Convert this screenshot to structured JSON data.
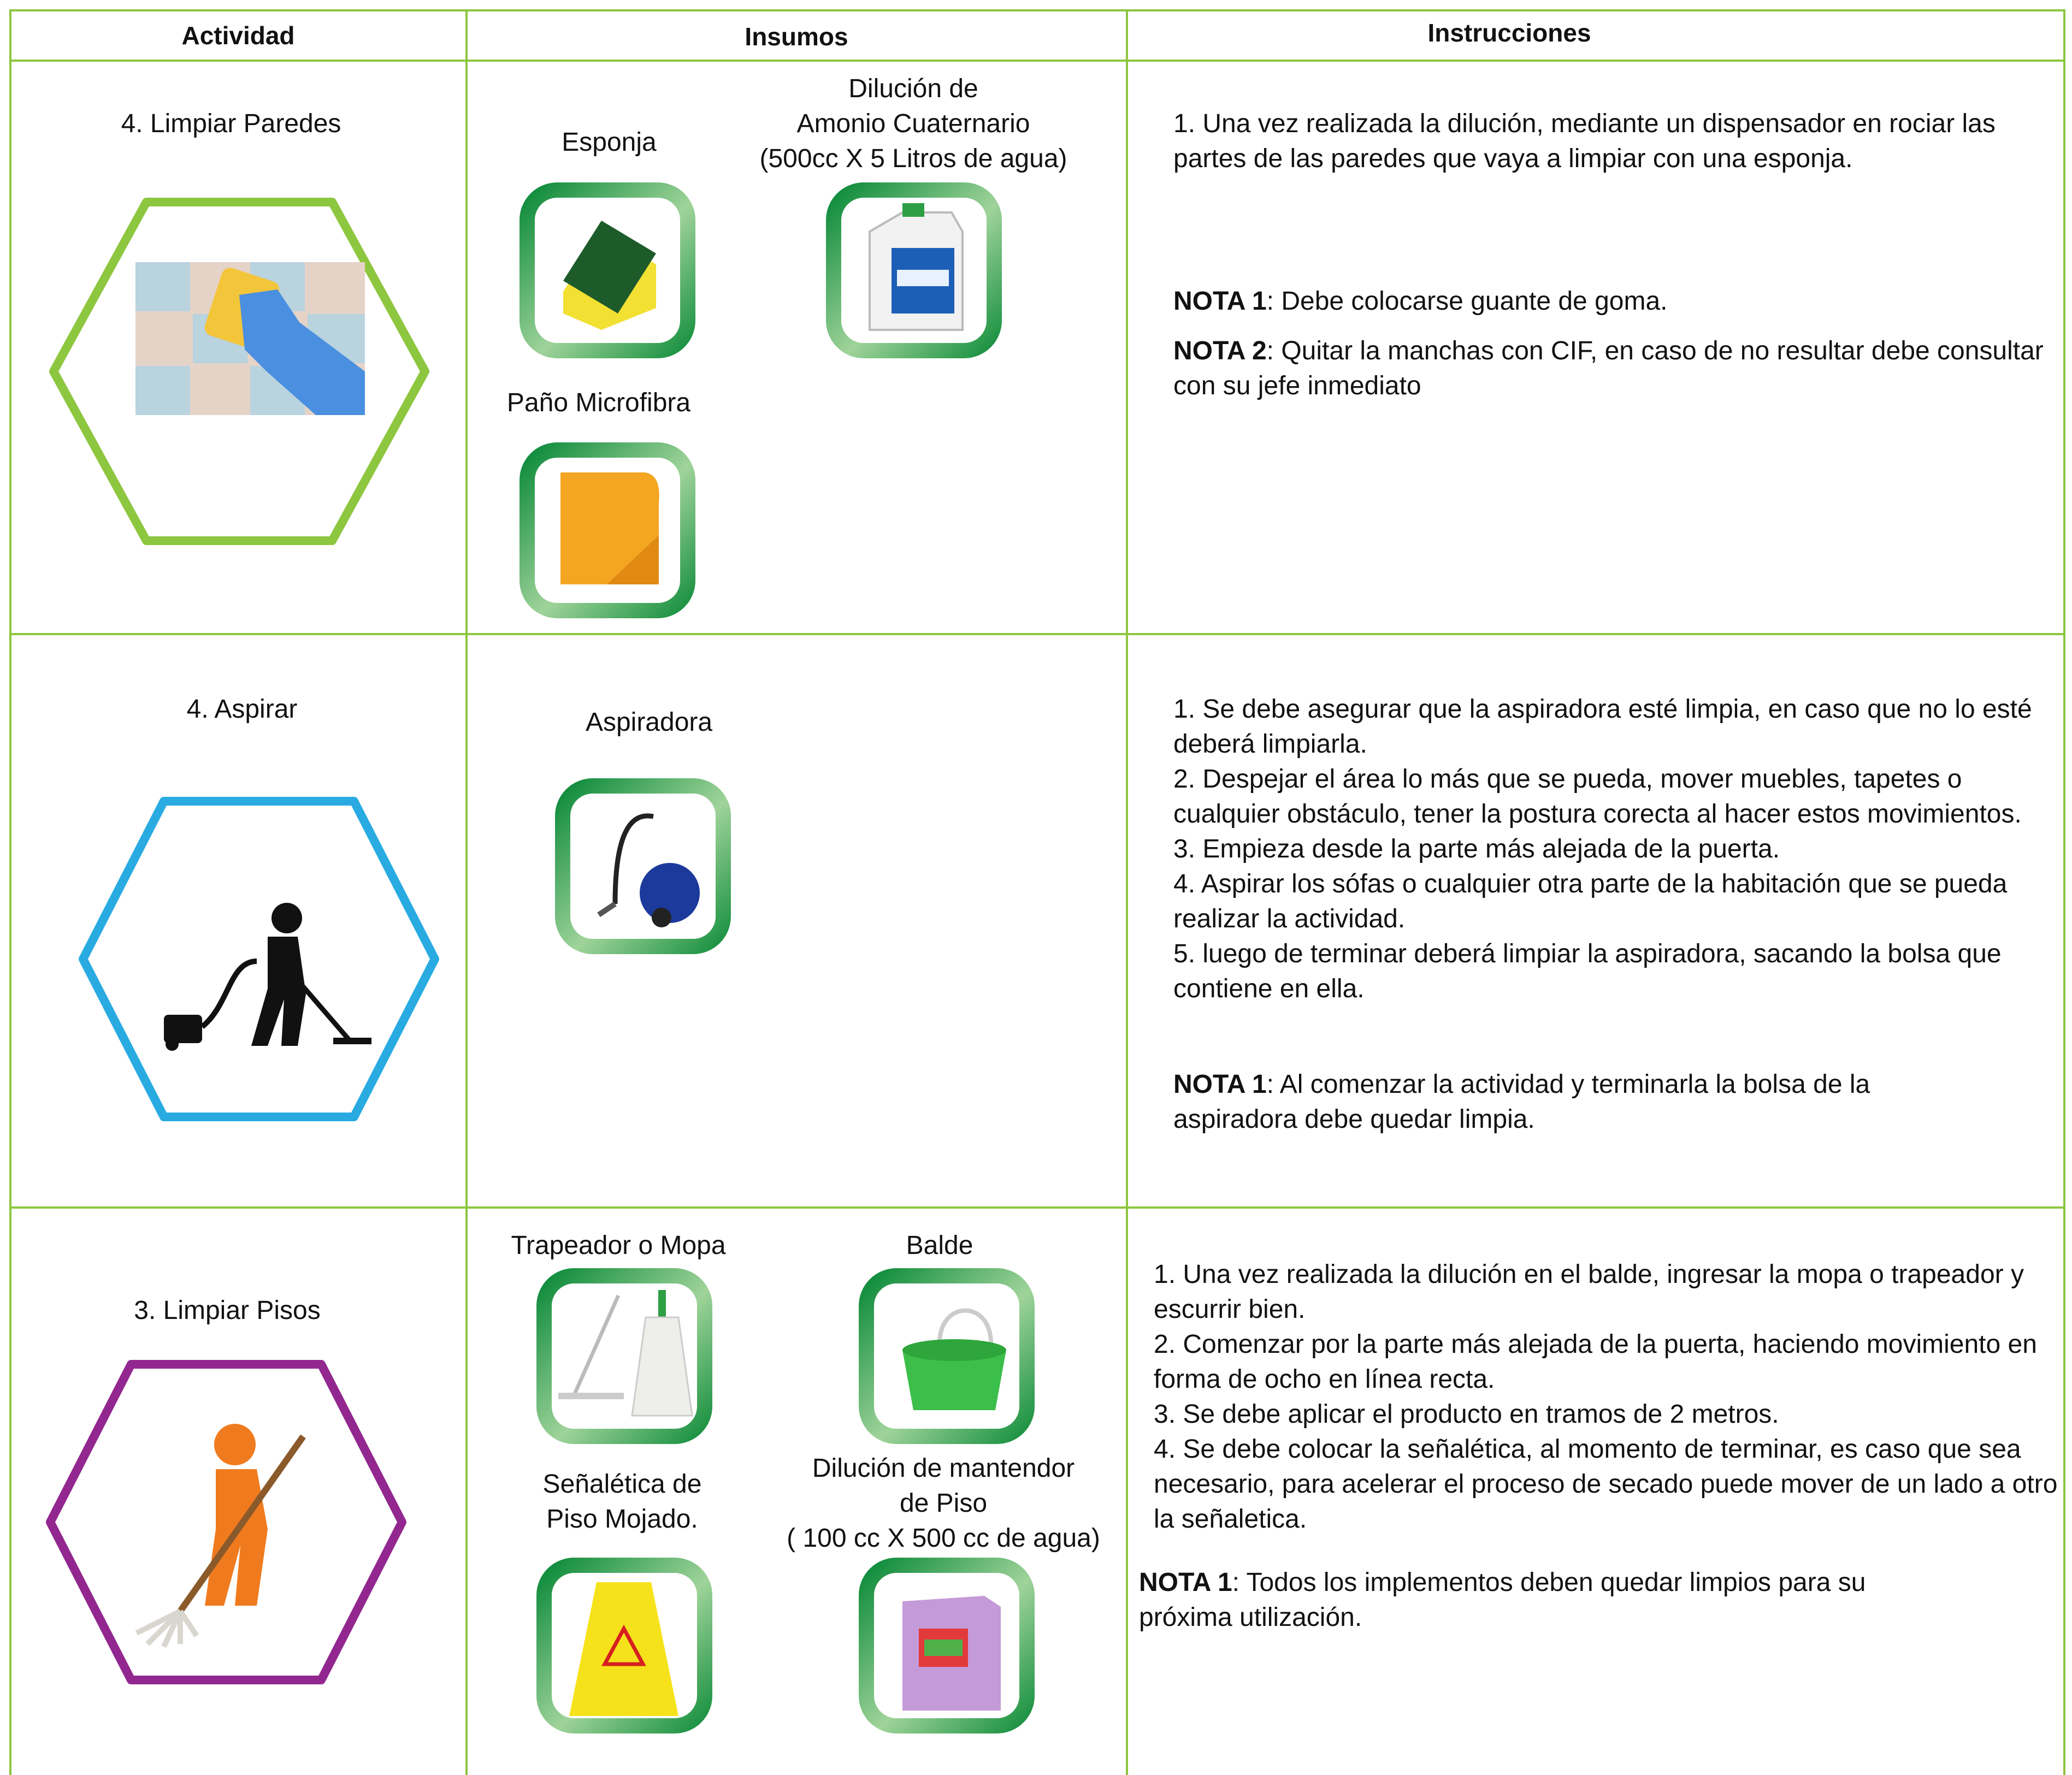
{
  "table": {
    "header": [
      "Actividad",
      "Insumos",
      "Instrucciones"
    ],
    "rows": [
      {
        "activity": "4. Limpiar Paredes",
        "supplies": [
          "Esponja",
          "Dilución de\nAmonio Cuaternario\n(500cc X 5 Litros de agua)",
          "Paño Microfibra"
        ],
        "instructions": [
          "1. Una vez realizada la dilución, mediante un dispensador en rociar las partes de las paredes que vaya a limpiar con una esponja."
        ],
        "notes": [
          {
            "label": "NOTA 1",
            "text": ": Debe colocarse guante de goma."
          },
          {
            "label": "NOTA 2",
            "text": ": Quitar la manchas con CIF, en caso de no resultar debe consultar con su jefe inmediato"
          }
        ]
      },
      {
        "activity": "4. Aspirar",
        "supplies": [
          "Aspiradora"
        ],
        "instructions": [
          "1. Se debe asegurar que la aspiradora esté limpia, en caso que no lo esté deberá limpiarla.",
          "2. Despejar el área lo más que se pueda, mover muebles, tapetes o cualquier obstáculo, tener la postura corecta al hacer estos movimientos.",
          "3. Empieza desde la parte más alejada de la puerta.",
          "4. Aspirar los sófas o cualquier otra parte de la habitación que se pueda realizar la actividad.",
          "5. luego de terminar deberá limpiar la aspiradora, sacando la bolsa que contiene en ella."
        ],
        "notes": [
          {
            "label": "NOTA 1",
            "text": ": Al comenzar la actividad y terminarla la bolsa de la aspiradora debe quedar limpia."
          }
        ]
      },
      {
        "activity": "3. Limpiar Pisos",
        "supplies": [
          "Trapeador o Mopa",
          "Balde",
          "Señalética de\nPiso Mojado.",
          "Dilución de mantendor\nde Piso\n( 100 cc X 500 cc de agua)"
        ],
        "instructions": [
          "1. Una vez realizada la dilución en el balde, ingresar la mopa o trapeador y escurrir bien.",
          "2. Comenzar por la parte más alejada de la puerta, haciendo movimiento en forma de ocho en línea recta.",
          "3. Se debe  aplicar el producto en tramos de 2 metros.",
          "4. Se debe colocar la señalética, al momento de terminar, es caso que sea necesario, para acelerar el proceso de secado puede mover de un lado a otro la señaletica."
        ],
        "notes": [
          {
            "label": "NOTA 1",
            "text": ": Todos los implementos deben quedar limpios para su próxima utilización."
          }
        ]
      }
    ]
  }
}
